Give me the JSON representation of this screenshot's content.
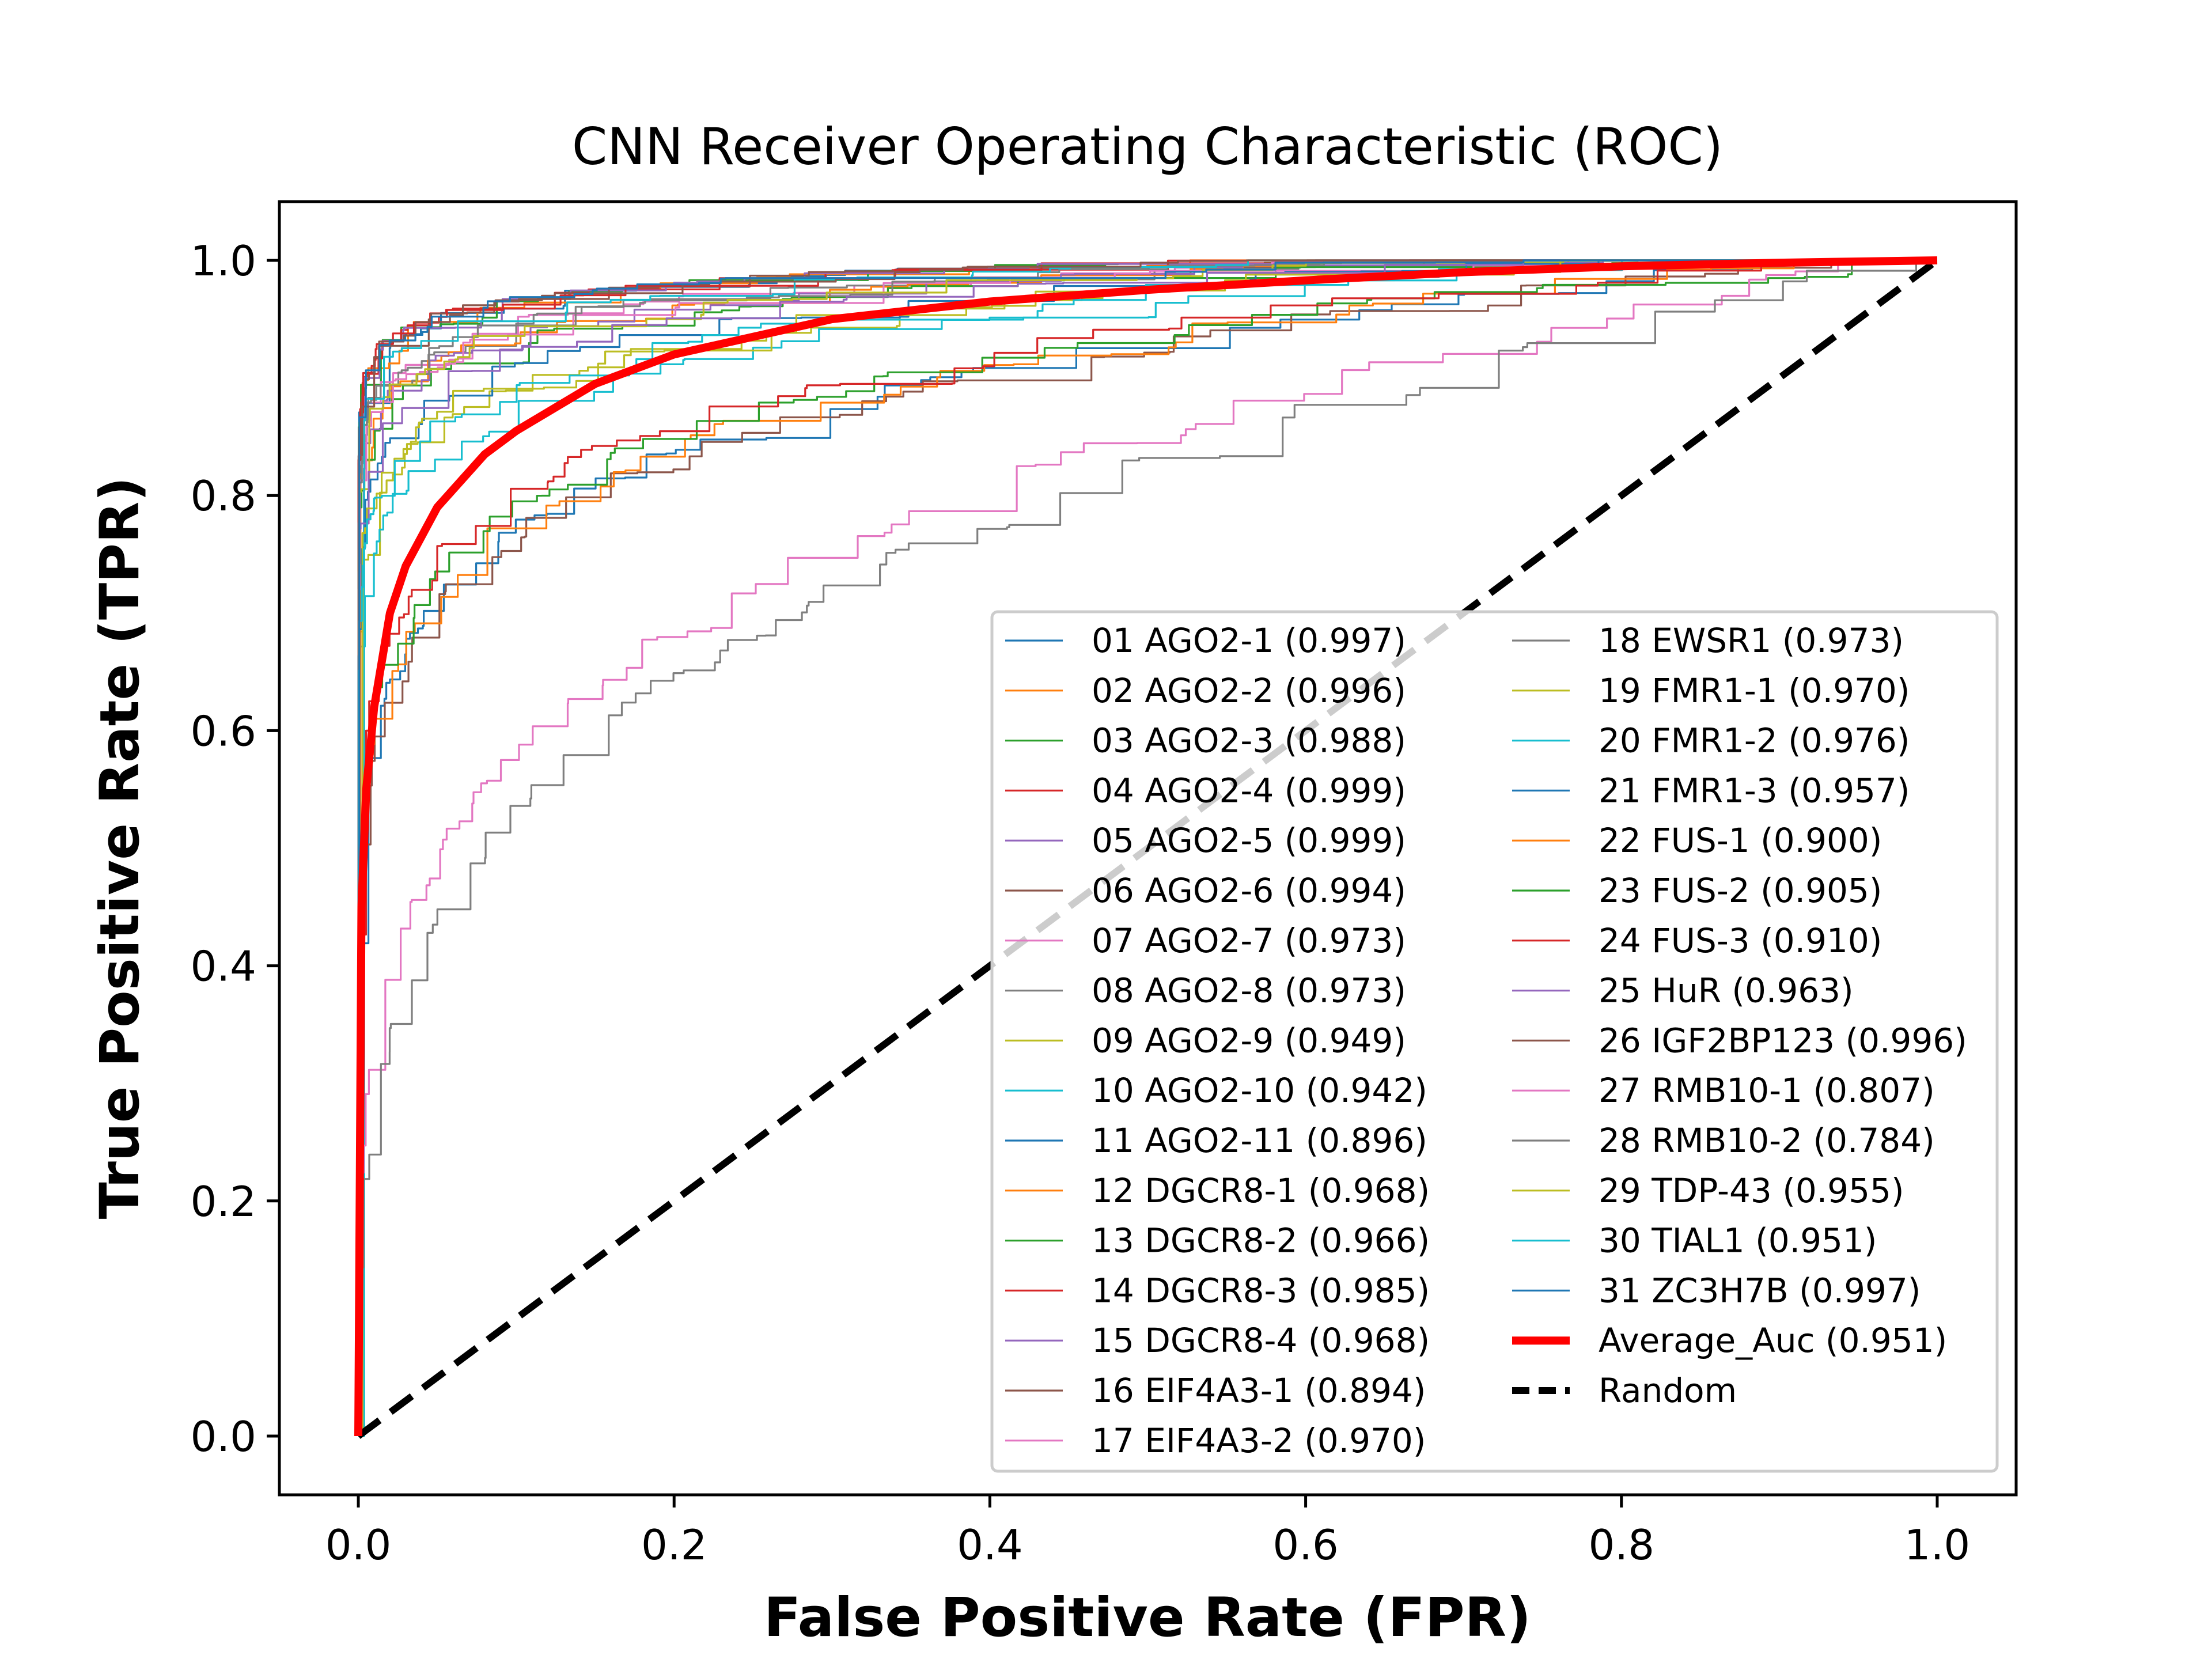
{
  "chart_data": {
    "type": "line",
    "title": "CNN Receiver Operating Characteristic (ROC)",
    "xlabel": "False Positive Rate (FPR)",
    "ylabel": "True Positive Rate (TPR)",
    "xlim": [
      -0.05,
      1.05
    ],
    "ylim": [
      -0.05,
      1.05
    ],
    "xticks": [
      "0.0",
      "0.2",
      "0.4",
      "0.6",
      "0.8",
      "1.0"
    ],
    "yticks": [
      "0.0",
      "0.2",
      "0.4",
      "0.6",
      "0.8",
      "1.0"
    ],
    "grid": false,
    "legend_position": "lower-right",
    "series": [
      {
        "name": "01 AGO2-1 (0.997)",
        "color": "#1f77b4",
        "auc": 0.997
      },
      {
        "name": "02 AGO2-2 (0.996)",
        "color": "#ff7f0e",
        "auc": 0.996
      },
      {
        "name": "03 AGO2-3 (0.988)",
        "color": "#2ca02c",
        "auc": 0.988
      },
      {
        "name": "04 AGO2-4 (0.999)",
        "color": "#d62728",
        "auc": 0.999
      },
      {
        "name": "05 AGO2-5 (0.999)",
        "color": "#9467bd",
        "auc": 0.999
      },
      {
        "name": "06 AGO2-6 (0.994)",
        "color": "#8c564b",
        "auc": 0.994
      },
      {
        "name": "07 AGO2-7 (0.973)",
        "color": "#e377c2",
        "auc": 0.973
      },
      {
        "name": "08 AGO2-8 (0.973)",
        "color": "#7f7f7f",
        "auc": 0.973
      },
      {
        "name": "09 AGO2-9 (0.949)",
        "color": "#bcbd22",
        "auc": 0.949
      },
      {
        "name": "10 AGO2-10 (0.942)",
        "color": "#17becf",
        "auc": 0.942
      },
      {
        "name": "11 AGO2-11 (0.896)",
        "color": "#1f77b4",
        "auc": 0.896
      },
      {
        "name": "12 DGCR8-1 (0.968)",
        "color": "#ff7f0e",
        "auc": 0.968
      },
      {
        "name": "13 DGCR8-2 (0.966)",
        "color": "#2ca02c",
        "auc": 0.966
      },
      {
        "name": "14 DGCR8-3 (0.985)",
        "color": "#d62728",
        "auc": 0.985
      },
      {
        "name": "15 DGCR8-4 (0.968)",
        "color": "#9467bd",
        "auc": 0.968
      },
      {
        "name": "16 EIF4A3-1 (0.894)",
        "color": "#8c564b",
        "auc": 0.894
      },
      {
        "name": "17 EIF4A3-2 (0.970)",
        "color": "#e377c2",
        "auc": 0.97
      },
      {
        "name": "18 EWSR1 (0.973)",
        "color": "#7f7f7f",
        "auc": 0.973
      },
      {
        "name": "19 FMR1-1 (0.970)",
        "color": "#bcbd22",
        "auc": 0.97
      },
      {
        "name": "20 FMR1-2 (0.976)",
        "color": "#17becf",
        "auc": 0.976
      },
      {
        "name": "21 FMR1-3 (0.957)",
        "color": "#1f77b4",
        "auc": 0.957
      },
      {
        "name": "22 FUS-1 (0.900)",
        "color": "#ff7f0e",
        "auc": 0.9
      },
      {
        "name": "23 FUS-2 (0.905)",
        "color": "#2ca02c",
        "auc": 0.905
      },
      {
        "name": "24 FUS-3 (0.910)",
        "color": "#d62728",
        "auc": 0.91
      },
      {
        "name": "25 HuR (0.963)",
        "color": "#9467bd",
        "auc": 0.963
      },
      {
        "name": "26 IGF2BP123 (0.996)",
        "color": "#8c564b",
        "auc": 0.996
      },
      {
        "name": "27 RMB10-1 (0.807)",
        "color": "#e377c2",
        "auc": 0.807
      },
      {
        "name": "28 RMB10-2 (0.784)",
        "color": "#7f7f7f",
        "auc": 0.784
      },
      {
        "name": "29 TDP-43 (0.955)",
        "color": "#bcbd22",
        "auc": 0.955
      },
      {
        "name": "30 TIAL1 (0.951)",
        "color": "#17becf",
        "auc": 0.951
      },
      {
        "name": "31 ZC3H7B (0.997)",
        "color": "#1f77b4",
        "auc": 0.997
      }
    ],
    "average": {
      "name": "Average_Auc (0.951)",
      "color": "#ff0000",
      "auc": 0.951,
      "points": [
        [
          0,
          0
        ],
        [
          0.002,
          0.45
        ],
        [
          0.005,
          0.55
        ],
        [
          0.01,
          0.62
        ],
        [
          0.02,
          0.7
        ],
        [
          0.03,
          0.74
        ],
        [
          0.05,
          0.79
        ],
        [
          0.08,
          0.835
        ],
        [
          0.1,
          0.855
        ],
        [
          0.15,
          0.895
        ],
        [
          0.2,
          0.92
        ],
        [
          0.25,
          0.935
        ],
        [
          0.3,
          0.95
        ],
        [
          0.4,
          0.965
        ],
        [
          0.5,
          0.975
        ],
        [
          0.6,
          0.983
        ],
        [
          0.7,
          0.99
        ],
        [
          0.8,
          0.995
        ],
        [
          0.9,
          0.998
        ],
        [
          1,
          1
        ]
      ]
    },
    "random": {
      "name": "Random",
      "color": "#000000",
      "points": [
        [
          0,
          0
        ],
        [
          1,
          1
        ]
      ]
    }
  }
}
